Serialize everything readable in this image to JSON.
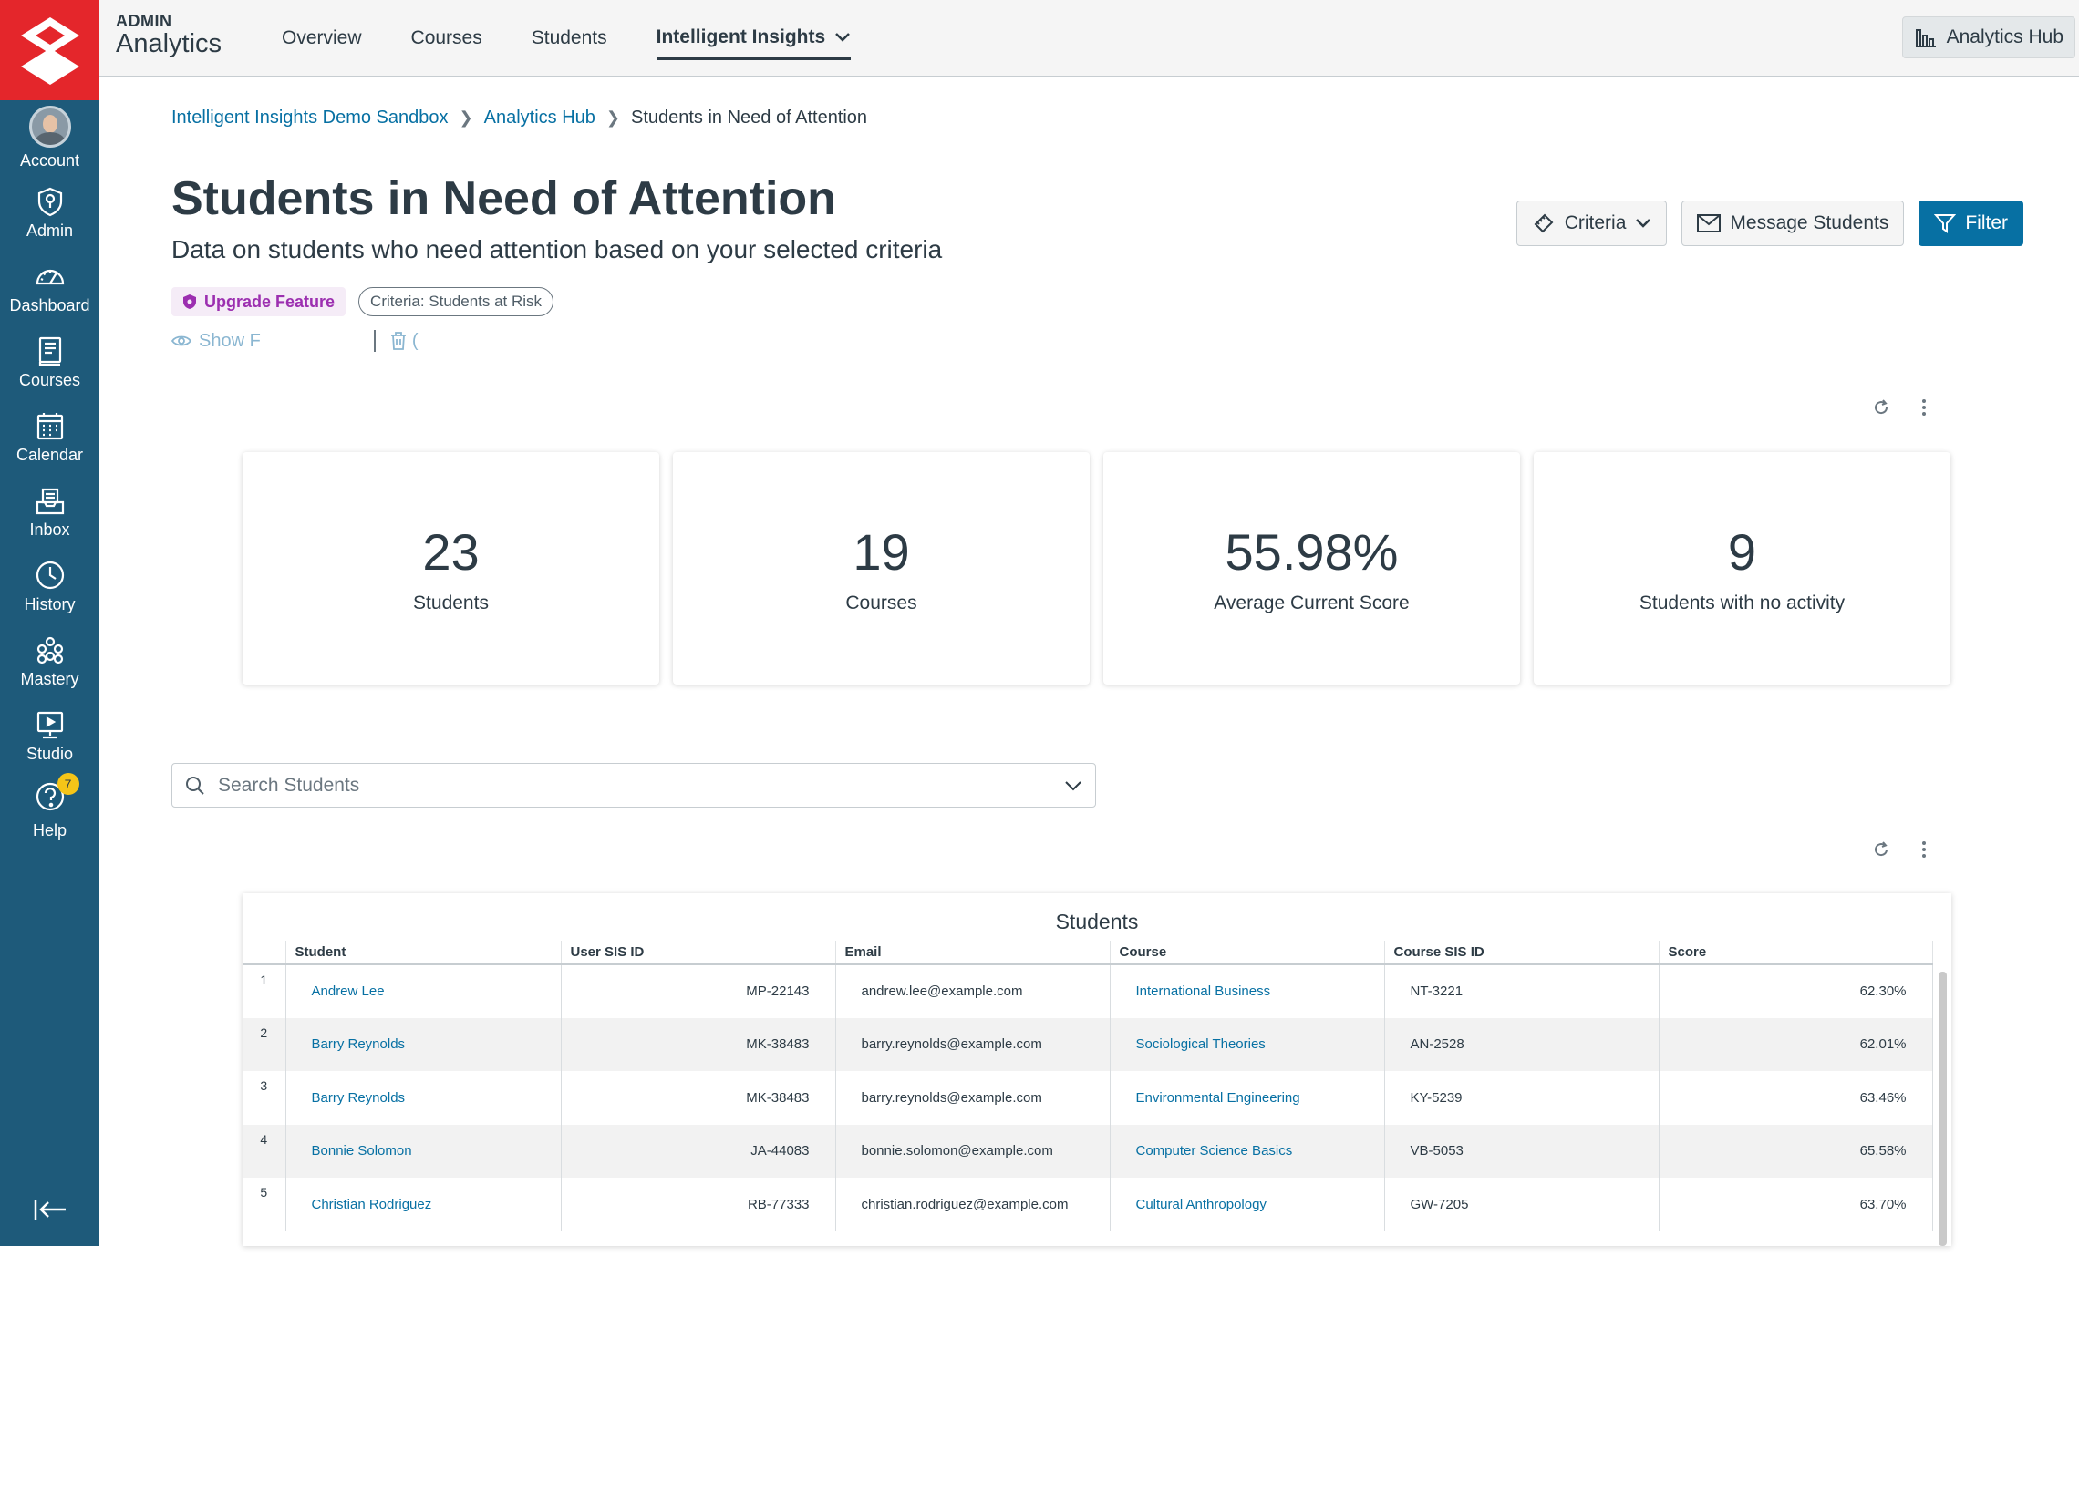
{
  "sidebar": {
    "items": [
      {
        "label": "Account"
      },
      {
        "label": "Admin"
      },
      {
        "label": "Dashboard"
      },
      {
        "label": "Courses"
      },
      {
        "label": "Calendar"
      },
      {
        "label": "Inbox"
      },
      {
        "label": "History"
      },
      {
        "label": "Mastery"
      },
      {
        "label": "Studio"
      },
      {
        "label": "Help",
        "badge": "7"
      }
    ]
  },
  "brand": {
    "small": "ADMIN",
    "big": "Analytics"
  },
  "topnav": {
    "items": [
      "Overview",
      "Courses",
      "Students"
    ],
    "active": "Intelligent Insights",
    "hub_button": "Analytics Hub"
  },
  "breadcrumb": {
    "items": [
      "Intelligent Insights Demo Sandbox",
      "Analytics Hub"
    ],
    "current": "Students in Need of Attention"
  },
  "page": {
    "title": "Students in Need of Attention",
    "subtitle": "Data on students who need attention based on your selected criteria",
    "upgrade_tag": "Upgrade Feature",
    "criteria_tag": "Criteria: Students at Risk",
    "show_link": "Show F",
    "trash_link": "("
  },
  "actions": {
    "criteria": "Criteria",
    "message": "Message Students",
    "filter": "Filter"
  },
  "stats": [
    {
      "value": "23",
      "label": "Students"
    },
    {
      "value": "19",
      "label": "Courses"
    },
    {
      "value": "55.98%",
      "label": "Average Current Score"
    },
    {
      "value": "9",
      "label": "Students with no activity"
    }
  ],
  "search": {
    "placeholder": "Search Students"
  },
  "table": {
    "title": "Students",
    "columns": [
      "Student",
      "User SIS ID",
      "Email",
      "Course",
      "Course SIS ID",
      "Score"
    ],
    "rows": [
      {
        "n": "1",
        "student": "Andrew Lee",
        "sis": "MP-22143",
        "email": "andrew.lee@example.com",
        "course": "International Business",
        "course_sis": "NT-3221",
        "score": "62.30%"
      },
      {
        "n": "2",
        "student": "Barry Reynolds",
        "sis": "MK-38483",
        "email": "barry.reynolds@example.com",
        "course": "Sociological Theories",
        "course_sis": "AN-2528",
        "score": "62.01%"
      },
      {
        "n": "3",
        "student": "Barry Reynolds",
        "sis": "MK-38483",
        "email": "barry.reynolds@example.com",
        "course": "Environmental Engineering",
        "course_sis": "KY-5239",
        "score": "63.46%"
      },
      {
        "n": "4",
        "student": "Bonnie Solomon",
        "sis": "JA-44083",
        "email": "bonnie.solomon@example.com",
        "course": "Computer Science Basics",
        "course_sis": "VB-5053",
        "score": "65.58%"
      },
      {
        "n": "5",
        "student": "Christian Rodriguez",
        "sis": "RB-77333",
        "email": "christian.rodriguez@example.com",
        "course": "Cultural Anthropology",
        "course_sis": "GW-7205",
        "score": "63.70%"
      }
    ]
  }
}
